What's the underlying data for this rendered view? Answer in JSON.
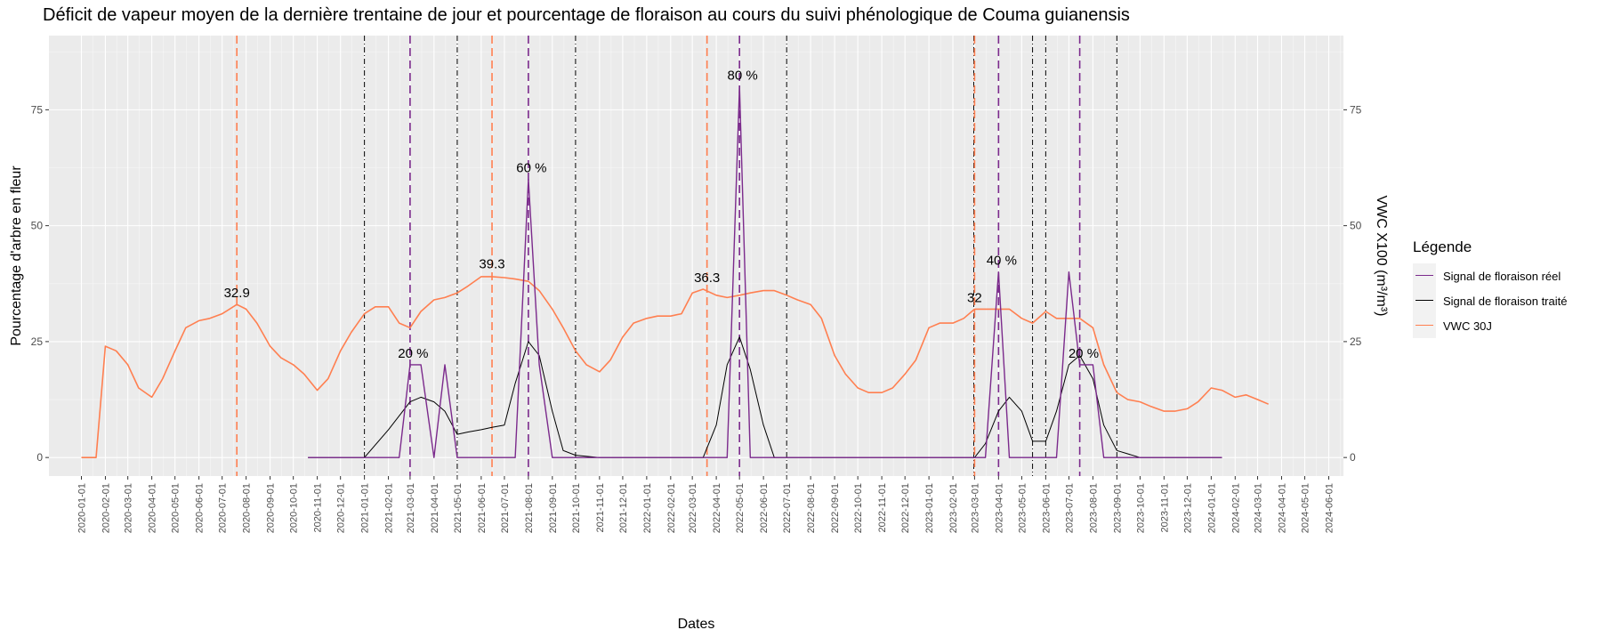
{
  "chart_data": {
    "type": "line",
    "title": "Déficit de vapeur moyen de la dernière trentaine de jour et pourcentage de floraison au cours du suivi phénologique de Couma guianensis",
    "xlabel": "Dates",
    "ylabel": "Pourcentage d'arbre en fleur",
    "y2label": "VWC X100 (m³/m³)",
    "ylim": [
      -4,
      91
    ],
    "y_ticks": [
      0,
      25,
      50,
      75
    ],
    "y_tick_labels": [
      "0",
      "25",
      "50",
      "75"
    ],
    "xlim": [
      "2019-11-20",
      "2024-06-20"
    ],
    "x_ticks": [
      "2020-01-01",
      "2020-02-01",
      "2020-03-01",
      "2020-04-01",
      "2020-05-01",
      "2020-06-01",
      "2020-07-01",
      "2020-08-01",
      "2020-09-01",
      "2020-10-01",
      "2020-11-01",
      "2020-12-01",
      "2021-01-01",
      "2021-02-01",
      "2021-03-01",
      "2021-04-01",
      "2021-05-01",
      "2021-06-01",
      "2021-07-01",
      "2021-08-01",
      "2021-09-01",
      "2021-10-01",
      "2021-11-01",
      "2021-12-01",
      "2022-01-01",
      "2022-02-01",
      "2022-03-01",
      "2022-04-01",
      "2022-05-01",
      "2022-06-01",
      "2022-07-01",
      "2022-08-01",
      "2022-09-01",
      "2022-10-01",
      "2022-11-01",
      "2022-12-01",
      "2023-01-01",
      "2023-02-01",
      "2023-03-01",
      "2023-04-01",
      "2023-05-01",
      "2023-06-01",
      "2023-07-01",
      "2023-08-01",
      "2023-09-01",
      "2023-10-01",
      "2023-11-01",
      "2023-12-01",
      "2024-01-01",
      "2024-02-01",
      "2024-03-01",
      "2024-04-01",
      "2024-05-01",
      "2024-06-01"
    ],
    "grid": true,
    "legend_title": "Légende",
    "legend_position": "right",
    "series": [
      {
        "name": "Signal de floraison réel",
        "color": "#7b2a8c",
        "x": [
          "2020-10-20",
          "2021-01-01",
          "2021-02-15",
          "2021-03-01",
          "2021-03-15",
          "2021-04-01",
          "2021-04-15",
          "2021-05-01",
          "2021-05-15",
          "2021-06-01",
          "2021-06-15",
          "2021-07-01",
          "2021-07-15",
          "2021-08-01",
          "2021-08-15",
          "2021-09-01",
          "2021-09-15",
          "2021-10-01",
          "2021-11-01",
          "2022-01-01",
          "2022-03-01",
          "2022-04-01",
          "2022-04-15",
          "2022-05-01",
          "2022-05-15",
          "2022-06-01",
          "2022-07-01",
          "2022-08-01",
          "2022-10-01",
          "2022-12-01",
          "2023-02-01",
          "2023-03-01",
          "2023-03-15",
          "2023-04-01",
          "2023-04-15",
          "2023-05-01",
          "2023-05-15",
          "2023-06-01",
          "2023-06-15",
          "2023-07-01",
          "2023-07-15",
          "2023-08-01",
          "2023-08-15",
          "2023-09-01",
          "2023-10-01",
          "2023-11-01",
          "2023-12-01",
          "2024-01-01",
          "2024-01-15"
        ],
        "values": [
          0,
          0,
          0,
          20,
          20,
          0,
          20,
          0,
          0,
          0,
          0,
          0,
          0,
          60,
          20,
          0,
          0,
          0,
          0,
          0,
          0,
          0,
          0,
          80,
          0,
          0,
          0,
          0,
          0,
          0,
          0,
          0,
          0,
          40,
          0,
          0,
          0,
          0,
          0,
          40,
          20,
          20,
          0,
          0,
          0,
          0,
          0,
          0,
          0
        ]
      },
      {
        "name": "Signal de floraison traité",
        "color": "#000000",
        "x": [
          "2020-10-20",
          "2021-01-01",
          "2021-02-01",
          "2021-03-01",
          "2021-03-15",
          "2021-04-01",
          "2021-04-15",
          "2021-05-01",
          "2021-05-15",
          "2021-06-01",
          "2021-06-15",
          "2021-07-01",
          "2021-07-15",
          "2021-08-01",
          "2021-08-15",
          "2021-09-01",
          "2021-09-15",
          "2021-10-01",
          "2021-11-01",
          "2022-01-01",
          "2022-03-01",
          "2022-03-15",
          "2022-04-01",
          "2022-04-15",
          "2022-05-01",
          "2022-05-15",
          "2022-06-01",
          "2022-06-15",
          "2022-07-01",
          "2022-08-01",
          "2022-10-01",
          "2022-12-01",
          "2023-02-01",
          "2023-03-01",
          "2023-03-15",
          "2023-04-01",
          "2023-04-15",
          "2023-05-01",
          "2023-05-15",
          "2023-06-01",
          "2023-06-15",
          "2023-07-01",
          "2023-07-15",
          "2023-08-01",
          "2023-08-15",
          "2023-09-01",
          "2023-10-01",
          "2023-11-01",
          "2023-12-01",
          "2024-01-01",
          "2024-01-15"
        ],
        "values": [
          0,
          0,
          6,
          12,
          13,
          12,
          10,
          5,
          5.5,
          6,
          6.5,
          7,
          16,
          25,
          22,
          10,
          1.5,
          0.5,
          0,
          0,
          0,
          0,
          7,
          20,
          26,
          19,
          7,
          0,
          0,
          0,
          0,
          0,
          0,
          0,
          3,
          10,
          13,
          10,
          3.5,
          3.5,
          10,
          20,
          22,
          17,
          7,
          1.5,
          0,
          0,
          0,
          0,
          0
        ]
      },
      {
        "name": "VWC 30J",
        "color": "#ff7f50",
        "x": [
          "2020-01-01",
          "2020-01-20",
          "2020-02-01",
          "2020-02-15",
          "2020-03-01",
          "2020-03-15",
          "2020-04-01",
          "2020-04-15",
          "2020-05-01",
          "2020-05-15",
          "2020-06-01",
          "2020-06-15",
          "2020-07-01",
          "2020-07-20",
          "2020-08-01",
          "2020-08-15",
          "2020-09-01",
          "2020-09-15",
          "2020-10-01",
          "2020-10-15",
          "2020-11-01",
          "2020-11-15",
          "2020-12-01",
          "2020-12-15",
          "2021-01-01",
          "2021-01-15",
          "2021-02-01",
          "2021-02-15",
          "2021-03-01",
          "2021-03-15",
          "2021-04-01",
          "2021-04-15",
          "2021-05-01",
          "2021-05-15",
          "2021-06-01",
          "2021-06-15",
          "2021-07-01",
          "2021-07-15",
          "2021-08-01",
          "2021-08-15",
          "2021-09-01",
          "2021-09-15",
          "2021-10-01",
          "2021-10-15",
          "2021-11-01",
          "2021-11-15",
          "2021-12-01",
          "2021-12-15",
          "2022-01-01",
          "2022-01-15",
          "2022-02-01",
          "2022-02-15",
          "2022-03-01",
          "2022-03-15",
          "2022-04-01",
          "2022-04-15",
          "2022-05-01",
          "2022-05-15",
          "2022-06-01",
          "2022-06-15",
          "2022-07-01",
          "2022-07-15",
          "2022-08-01",
          "2022-08-15",
          "2022-09-01",
          "2022-09-15",
          "2022-10-01",
          "2022-10-15",
          "2022-11-01",
          "2022-11-15",
          "2022-12-01",
          "2022-12-15",
          "2023-01-01",
          "2023-01-15",
          "2023-02-01",
          "2023-02-15",
          "2023-03-01",
          "2023-03-15",
          "2023-04-01",
          "2023-04-15",
          "2023-05-01",
          "2023-05-15",
          "2023-06-01",
          "2023-06-15",
          "2023-07-01",
          "2023-07-15",
          "2023-08-01",
          "2023-08-15",
          "2023-09-01",
          "2023-09-15",
          "2023-10-01",
          "2023-10-15",
          "2023-11-01",
          "2023-11-15",
          "2023-12-01",
          "2023-12-15",
          "2024-01-01",
          "2024-01-15",
          "2024-02-01",
          "2024-02-15",
          "2024-03-01",
          "2024-03-15"
        ],
        "values": [
          0,
          0,
          24,
          23,
          20,
          15,
          13,
          17,
          23,
          28,
          29.5,
          30,
          31,
          33,
          32,
          29,
          24,
          21.5,
          20,
          18,
          14.5,
          17,
          23,
          27,
          31,
          32.5,
          32.5,
          29,
          28,
          31.5,
          34,
          34.5,
          35.5,
          37,
          39,
          39,
          38.8,
          38.5,
          38,
          36,
          32,
          28,
          23,
          20,
          18.5,
          21,
          26,
          29,
          30,
          30.5,
          30.5,
          31,
          35.5,
          36.3,
          35,
          34.5,
          35,
          35.5,
          36,
          36,
          35,
          34,
          33,
          30,
          22,
          18,
          15,
          14,
          14,
          15,
          18,
          21,
          28,
          29,
          29,
          30,
          32,
          32,
          32,
          32,
          30,
          29,
          31.5,
          30,
          30,
          30,
          28,
          20,
          14,
          12.5,
          12,
          11,
          10,
          10,
          10.5,
          12,
          15,
          14.5,
          13,
          13.5,
          12.5,
          11.5
        ]
      }
    ],
    "markers": {
      "vwc_peaks": [
        "2020-07-20",
        "2021-06-15",
        "2022-03-20",
        "2023-03-01"
      ],
      "flower_peaks": [
        "2021-03-01",
        "2021-08-01",
        "2022-05-01",
        "2023-04-01",
        "2023-07-15"
      ],
      "phase_bounds": [
        "2021-01-01",
        "2021-05-01",
        "2021-10-01",
        "2022-07-01",
        "2023-02-28",
        "2023-05-15",
        "2023-06-01",
        "2023-09-01"
      ]
    },
    "annotations": [
      {
        "text": "32.9",
        "x": "2020-07-20",
        "y": 33
      },
      {
        "text": "39.3",
        "x": "2021-06-15",
        "y": 39.3
      },
      {
        "text": "36.3",
        "x": "2022-03-20",
        "y": 36.3
      },
      {
        "text": "32",
        "x": "2023-03-01",
        "y": 32
      },
      {
        "text": "20 %",
        "x": "2021-03-05",
        "y": 20
      },
      {
        "text": "60 %",
        "x": "2021-08-05",
        "y": 60
      },
      {
        "text": "80 %",
        "x": "2022-05-05",
        "y": 80
      },
      {
        "text": "40 %",
        "x": "2023-04-05",
        "y": 40
      },
      {
        "text": "20 %",
        "x": "2023-07-20",
        "y": 20
      }
    ]
  }
}
